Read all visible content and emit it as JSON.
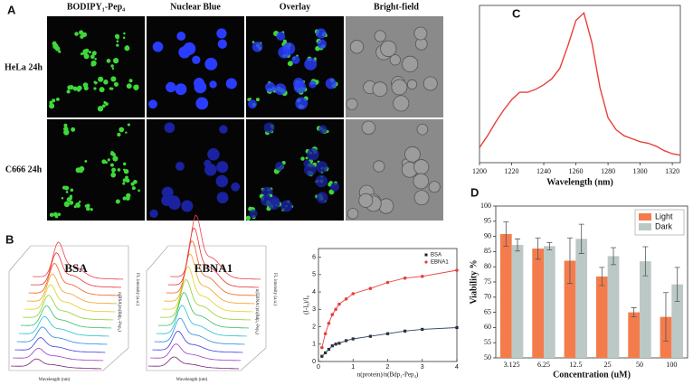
{
  "panel_labels": [
    "A",
    "B",
    "C",
    "D"
  ],
  "panel_a": {
    "columns": [
      "BODIPY₁-Pep₄",
      "Nuclear Blue",
      "Overlay",
      "Bright-field"
    ],
    "rows": [
      "HeLa 24h",
      "C666 24h"
    ]
  },
  "panel_b": {
    "waterfalls": [
      {
        "title": "BSA",
        "x_label": "Wavelength (nm)",
        "y_label": "FL intensity (a.u.)",
        "z_label": "n(BSA)/n(Bdp₁-Pep₄)"
      },
      {
        "title": "EBNA1",
        "x_label": "Wavelength (nm)",
        "y_label": "FL intensity (a.u.)",
        "z_label": "n(EBNA1)/n(Bdp₁-Pep₄)"
      }
    ]
  },
  "chart_data": [
    {
      "type": "line",
      "x_label": "Wavelength (nm)",
      "color": "#e8403c",
      "x": [
        1200,
        1205,
        1210,
        1215,
        1220,
        1225,
        1230,
        1235,
        1240,
        1245,
        1250,
        1255,
        1260,
        1265,
        1270,
        1275,
        1280,
        1285,
        1290,
        1295,
        1300,
        1305,
        1310,
        1315,
        1320,
        1325
      ],
      "values": [
        10,
        18,
        27,
        35,
        42,
        47,
        47,
        49,
        52,
        56,
        63,
        78,
        95,
        100,
        80,
        50,
        30,
        22,
        18,
        16,
        14,
        13,
        11,
        8,
        6,
        5
      ],
      "xlim": [
        1200,
        1325
      ],
      "xticks": [
        1200,
        1220,
        1240,
        1260,
        1280,
        1300,
        1320
      ],
      "ylim": [
        0,
        105
      ]
    },
    {
      "type": "bar",
      "x_label": "Concentration (uM)",
      "y_label": "Viability %",
      "categories": [
        "3.125",
        "6.25",
        "12.5",
        "25",
        "50",
        "100"
      ],
      "series": [
        {
          "name": "Light",
          "color": "#f47c4c",
          "values": [
            90.8,
            86,
            82,
            76.8,
            65,
            63.5
          ],
          "errors": [
            4,
            3.5,
            7.5,
            3,
            1.5,
            8
          ]
        },
        {
          "name": "Dark",
          "color": "#bcc8c6",
          "values": [
            87.2,
            86.8,
            89.2,
            83.5,
            81.8,
            74.2
          ],
          "errors": [
            2,
            1.2,
            4.8,
            2.8,
            4.8,
            5.6
          ]
        }
      ],
      "ylim": [
        50,
        100
      ],
      "yticks": [
        50,
        55,
        60,
        65,
        70,
        75,
        80,
        85,
        90,
        95,
        100
      ],
      "legend": "upper right"
    },
    {
      "type": "scatter",
      "x_label": "n(protein)/n(Bdp₁-Pep₄)",
      "y_label": "(I-I₀)/I₀",
      "x": [
        0.1,
        0.2,
        0.3,
        0.4,
        0.5,
        0.6,
        0.8,
        1,
        1.5,
        2,
        2.5,
        3,
        4
      ],
      "series": [
        {
          "name": "BSA",
          "color": "#222222",
          "marker": "square",
          "values": [
            0.3,
            0.5,
            0.7,
            0.9,
            1,
            1.05,
            1.2,
            1.3,
            1.45,
            1.6,
            1.75,
            1.85,
            1.95
          ]
        },
        {
          "name": "EBNA1",
          "color": "#e8403c",
          "marker": "circle",
          "values": [
            0.8,
            1.6,
            2.2,
            2.7,
            3,
            3.3,
            3.6,
            3.9,
            4.2,
            4.55,
            4.8,
            4.9,
            5.25
          ]
        }
      ],
      "xlim": [
        0,
        4
      ],
      "xticks": [
        0,
        1,
        2,
        3,
        4
      ],
      "ylim": [
        0,
        6.5
      ],
      "yticks": [
        0,
        1,
        2,
        3,
        4,
        5,
        6
      ],
      "legend": "upper right"
    }
  ]
}
